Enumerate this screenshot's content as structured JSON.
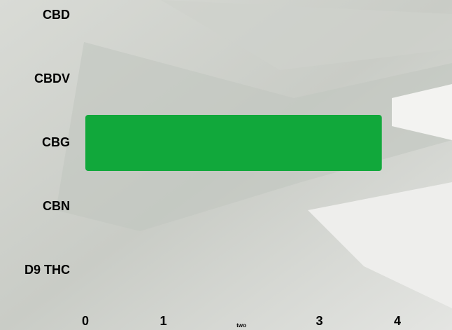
{
  "chart_data": {
    "type": "hbar",
    "categories": [
      "CBD",
      "CBDV",
      "CBG",
      "CBN",
      "D9 THC"
    ],
    "values": [
      0,
      0,
      3.8,
      0,
      0
    ],
    "color": "#11a83b",
    "xlim": [
      0,
      4
    ],
    "xticks": [
      0,
      1,
      {
        "value": 2,
        "label": "two"
      },
      3,
      4
    ]
  }
}
